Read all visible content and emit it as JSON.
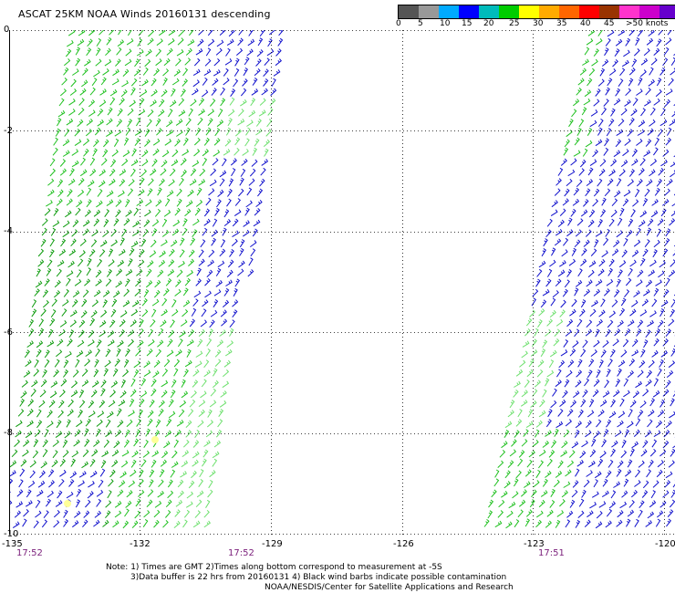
{
  "title": "ASCAT 25KM NOAA Winds 20160131 descending",
  "colorbar": {
    "colors": [
      "#555555",
      "#999999",
      "#00aaff",
      "#0000ff",
      "#00bbbb",
      "#00cc00",
      "#ffff00",
      "#ffaa00",
      "#ff6600",
      "#ff0000",
      "#993300",
      "#ff33cc",
      "#cc00cc",
      "#6600cc"
    ],
    "labels": [
      "0",
      "5",
      "10",
      "15",
      "20",
      "25",
      "30",
      "35",
      "40",
      "45",
      ">50 knots"
    ]
  },
  "axes": {
    "y_labels": [
      "0",
      "-2",
      "-4",
      "-6",
      "-8",
      "-10"
    ],
    "x_labels": [
      "-135",
      "-132",
      "-129",
      "-126",
      "-123",
      "-120"
    ],
    "xlim": [
      -135,
      -120
    ],
    "ylim": [
      -10,
      0
    ]
  },
  "times": [
    "17:52",
    "17:52",
    "17:51"
  ],
  "wind_colors": {
    "calm": "#6ee06e",
    "light": "#1fc01f",
    "moderate": "#0c9b0c",
    "strong": "#1010cc",
    "rain": "#ffff99"
  },
  "notes": {
    "line1": "Note: 1) Times are GMT 2)Times along bottom correspond to measurement at -5S",
    "line2": "3)Data buffer is 22 hrs from 20160131 4) Black wind barbs indicate possible contamination",
    "line3": "NOAA/NESDIS/Center for Satellite Applications and Research"
  }
}
